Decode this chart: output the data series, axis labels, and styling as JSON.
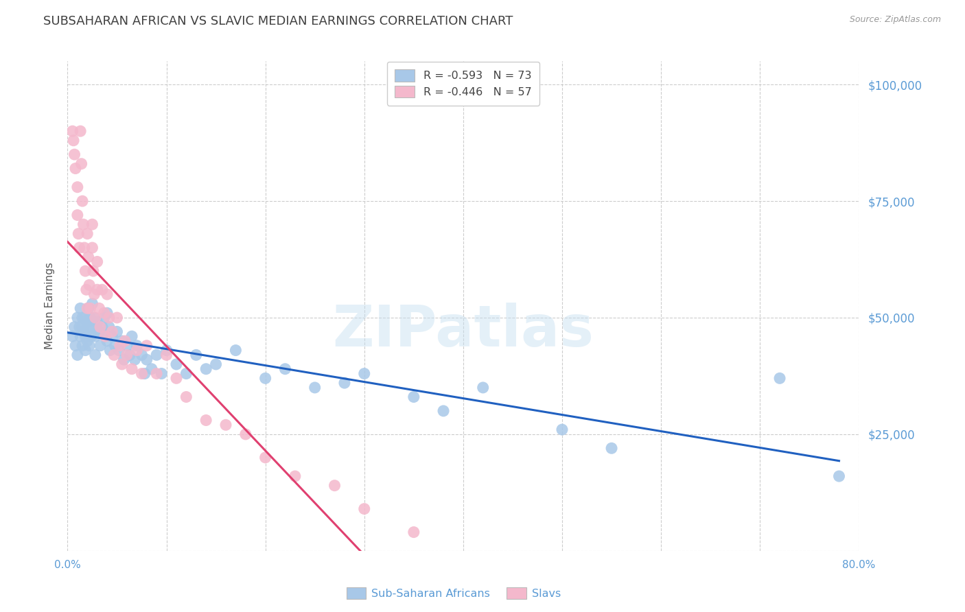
{
  "title": "SUBSAHARAN AFRICAN VS SLAVIC MEDIAN EARNINGS CORRELATION CHART",
  "source": "Source: ZipAtlas.com",
  "ylabel": "Median Earnings",
  "yticks": [
    0,
    25000,
    50000,
    75000,
    100000
  ],
  "ytick_labels": [
    "",
    "$25,000",
    "$50,000",
    "$75,000",
    "$100,000"
  ],
  "xlim": [
    0.0,
    0.8
  ],
  "ylim": [
    0,
    105000
  ],
  "blue_R": "-0.593",
  "blue_N": "73",
  "pink_R": "-0.446",
  "pink_N": "57",
  "legend_label_blue": "Sub-Saharan Africans",
  "legend_label_pink": "Slavs",
  "watermark_zip": "ZIP",
  "watermark_atlas": "atlas",
  "blue_color": "#a8c8e8",
  "pink_color": "#f4b8cc",
  "blue_line_color": "#2060c0",
  "pink_line_color": "#e04070",
  "background_color": "#ffffff",
  "grid_color": "#cccccc",
  "title_color": "#404040",
  "axis_label_color": "#5b9bd5",
  "blue_scatter_x": [
    0.005,
    0.007,
    0.008,
    0.01,
    0.01,
    0.012,
    0.013,
    0.013,
    0.015,
    0.015,
    0.015,
    0.016,
    0.017,
    0.018,
    0.018,
    0.02,
    0.02,
    0.021,
    0.022,
    0.022,
    0.023,
    0.024,
    0.025,
    0.025,
    0.027,
    0.028,
    0.028,
    0.03,
    0.032,
    0.033,
    0.035,
    0.037,
    0.038,
    0.04,
    0.04,
    0.042,
    0.043,
    0.045,
    0.048,
    0.05,
    0.052,
    0.055,
    0.057,
    0.06,
    0.063,
    0.065,
    0.068,
    0.07,
    0.075,
    0.078,
    0.08,
    0.085,
    0.09,
    0.095,
    0.1,
    0.11,
    0.12,
    0.13,
    0.14,
    0.15,
    0.17,
    0.2,
    0.22,
    0.25,
    0.28,
    0.3,
    0.35,
    0.38,
    0.42,
    0.5,
    0.55,
    0.72,
    0.78
  ],
  "blue_scatter_y": [
    46000,
    48000,
    44000,
    50000,
    42000,
    48000,
    52000,
    46000,
    50000,
    48000,
    44000,
    47000,
    50000,
    46000,
    43000,
    49000,
    45000,
    52000,
    48000,
    44000,
    50000,
    46000,
    53000,
    48000,
    50000,
    46000,
    42000,
    49000,
    47000,
    44000,
    48000,
    50000,
    46000,
    51000,
    45000,
    48000,
    43000,
    46000,
    44000,
    47000,
    43000,
    45000,
    41000,
    44000,
    42000,
    46000,
    41000,
    44000,
    42000,
    38000,
    41000,
    39000,
    42000,
    38000,
    43000,
    40000,
    38000,
    42000,
    39000,
    40000,
    43000,
    37000,
    39000,
    35000,
    36000,
    38000,
    33000,
    30000,
    35000,
    26000,
    22000,
    37000,
    16000
  ],
  "pink_scatter_x": [
    0.005,
    0.006,
    0.007,
    0.008,
    0.01,
    0.01,
    0.011,
    0.012,
    0.013,
    0.014,
    0.015,
    0.016,
    0.017,
    0.018,
    0.019,
    0.02,
    0.02,
    0.021,
    0.022,
    0.023,
    0.025,
    0.025,
    0.026,
    0.027,
    0.028,
    0.03,
    0.03,
    0.032,
    0.033,
    0.035,
    0.037,
    0.038,
    0.04,
    0.042,
    0.045,
    0.047,
    0.05,
    0.053,
    0.055,
    0.058,
    0.06,
    0.065,
    0.07,
    0.075,
    0.08,
    0.09,
    0.1,
    0.11,
    0.12,
    0.14,
    0.16,
    0.18,
    0.2,
    0.23,
    0.27,
    0.3,
    0.35
  ],
  "pink_scatter_y": [
    90000,
    88000,
    85000,
    82000,
    78000,
    72000,
    68000,
    65000,
    90000,
    83000,
    75000,
    70000,
    65000,
    60000,
    56000,
    52000,
    68000,
    63000,
    57000,
    52000,
    70000,
    65000,
    60000,
    55000,
    50000,
    62000,
    56000,
    52000,
    48000,
    56000,
    51000,
    46000,
    55000,
    50000,
    47000,
    42000,
    50000,
    44000,
    40000,
    45000,
    42000,
    39000,
    43000,
    38000,
    44000,
    38000,
    42000,
    37000,
    33000,
    28000,
    27000,
    25000,
    20000,
    16000,
    14000,
    9000,
    4000
  ]
}
